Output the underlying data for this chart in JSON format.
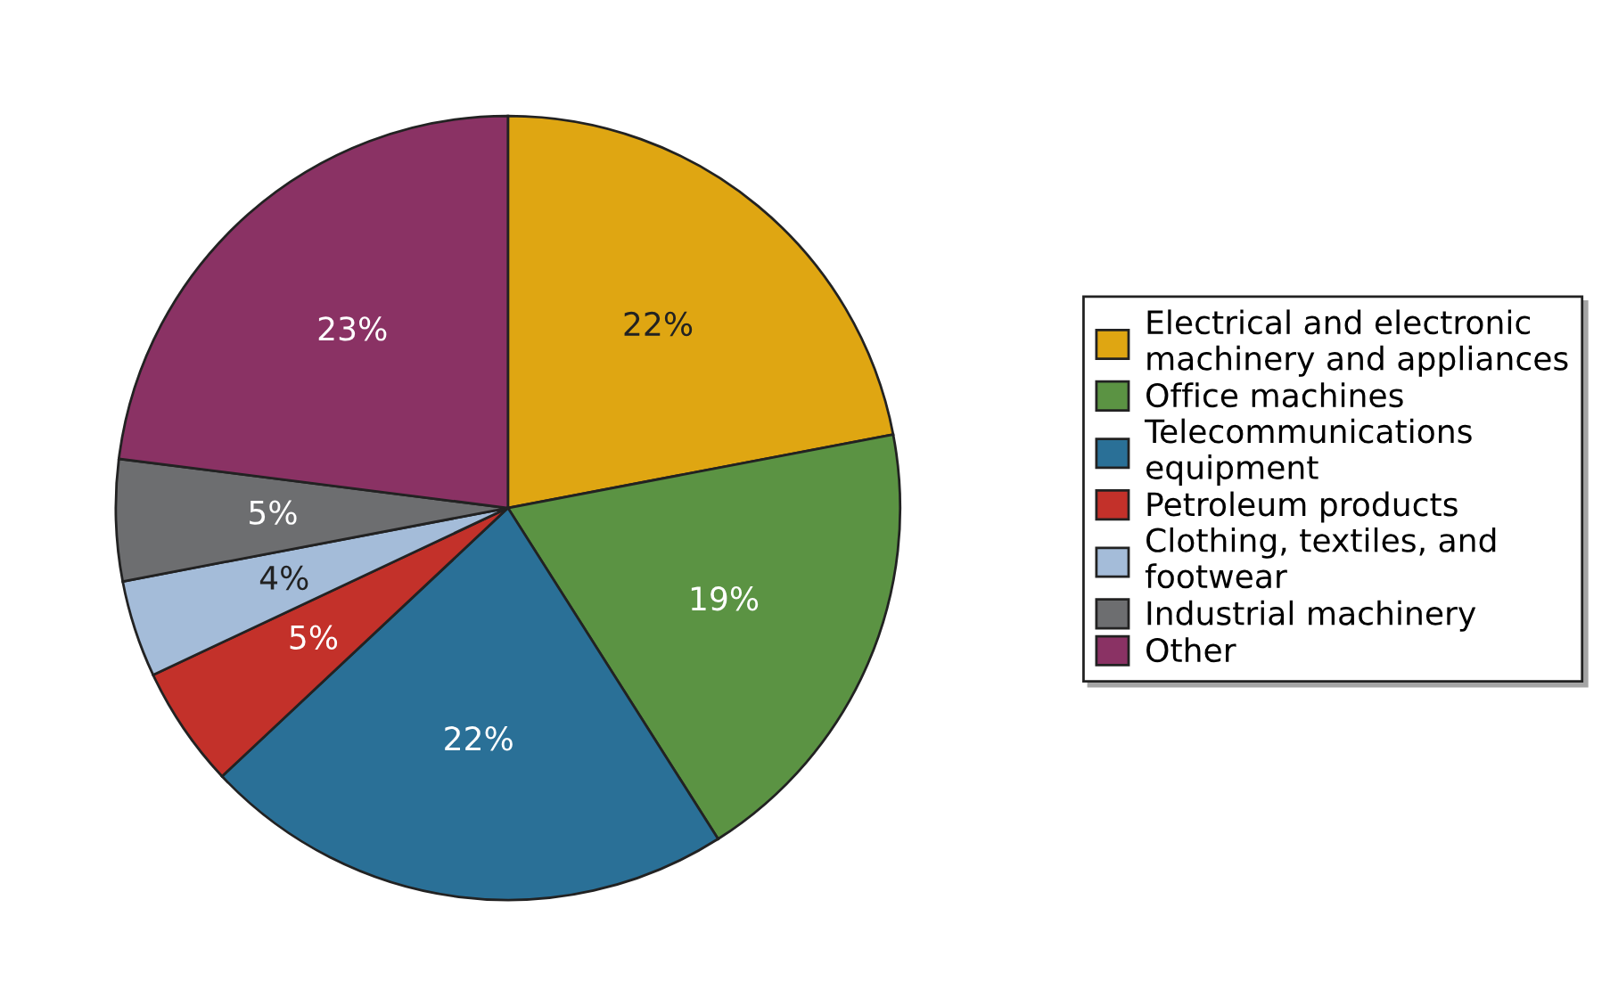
{
  "chart_data": {
    "type": "pie",
    "categories": [
      "Electrical and electronic machinery and appliances",
      "Office machines",
      "Telecommunications equipment",
      "Petroleum products",
      "Clothing, textiles, and footwear",
      "Industrial machinery",
      "Other"
    ],
    "values": [
      22,
      19,
      22,
      5,
      4,
      5,
      23
    ],
    "value_labels": [
      "22%",
      "19%",
      "22%",
      "5%",
      "4%",
      "5%",
      "23%"
    ],
    "colors": [
      "#dfa612",
      "#5b9343",
      "#2a7097",
      "#c3312a",
      "#a4bcd9",
      "#6d6e70",
      "#8a3264"
    ],
    "legend": "right"
  }
}
